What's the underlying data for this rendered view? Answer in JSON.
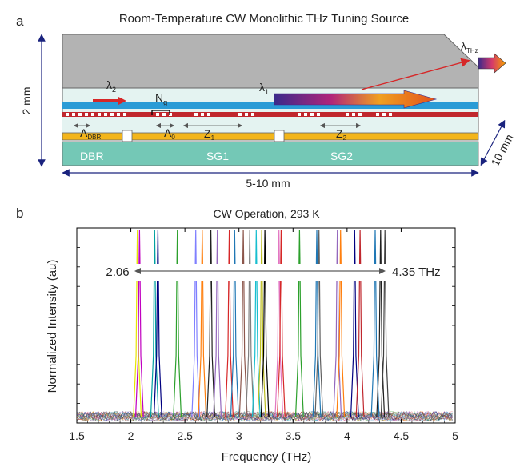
{
  "panel_a": {
    "label": "a",
    "title": "Room-Temperature CW Monolithic THz Tuning Source",
    "height_label": "2 mm",
    "length_label": "5-10 mm",
    "width_label": "10 mm",
    "lambda_thz": "λ",
    "lambda_thz_sub": "THz",
    "lambda2": "λ",
    "lambda2_sub": "2",
    "lambda1": "λ",
    "lambda1_sub": "1",
    "ng": "N",
    "ng_sub": "g",
    "lambda_dbr": "Λ",
    "lambda_dbr_sub": "DBR",
    "lambda0": "Λ",
    "lambda0_sub": "0",
    "z1": "Z",
    "z1_sub": "1",
    "z2": "Z",
    "z2_sub": "2",
    "section_dbr": "DBR",
    "section_sg1": "SG1",
    "section_sg2": "SG2",
    "colors": {
      "top_block": "#b3b3b3",
      "cladding": "#e4f3f1",
      "waveguide": "#2a9bd6",
      "grating": "#c0272d",
      "electrode": "#f3b51b",
      "substrate": "#74c8b6",
      "axis_arrow": "#1a237e"
    }
  },
  "panel_b": {
    "label": "b",
    "tuning_low": "2.06",
    "tuning_high": "4.35 THz"
  },
  "chart_data": {
    "type": "line",
    "title": "CW Operation, 293 K",
    "xlabel": "Frequency (THz)",
    "ylabel": "Normalized Intensity (au)",
    "xlim": [
      1.5,
      5
    ],
    "ylim": [
      0,
      1
    ],
    "x_ticks": [
      "1.5",
      "2",
      "2.5",
      "3",
      "3.5",
      "4",
      "4.5",
      "5"
    ],
    "grid": false,
    "series": [
      {
        "peak": 2.06,
        "color": "#e6e600"
      },
      {
        "peak": 2.08,
        "color": "#c000c0"
      },
      {
        "peak": 2.22,
        "color": "#00a0a0"
      },
      {
        "peak": 2.25,
        "color": "#000080"
      },
      {
        "peak": 2.43,
        "color": "#2ca02c"
      },
      {
        "peak": 2.6,
        "color": "#7f7fff"
      },
      {
        "peak": 2.66,
        "color": "#ff7f0e"
      },
      {
        "peak": 2.74,
        "color": "#202020"
      },
      {
        "peak": 2.8,
        "color": "#9467bd"
      },
      {
        "peak": 2.91,
        "color": "#d62728"
      },
      {
        "peak": 2.96,
        "color": "#1f77b4"
      },
      {
        "peak": 3.04,
        "color": "#8c564b"
      },
      {
        "peak": 3.1,
        "color": "#7f7f7f"
      },
      {
        "peak": 3.16,
        "color": "#17becf"
      },
      {
        "peak": 3.21,
        "color": "#bcbd22"
      },
      {
        "peak": 3.24,
        "color": "#000000"
      },
      {
        "peak": 3.37,
        "color": "#e377c2"
      },
      {
        "peak": 3.39,
        "color": "#d62728"
      },
      {
        "peak": 3.56,
        "color": "#2ca02c"
      },
      {
        "peak": 3.72,
        "color": "#1f77b4"
      },
      {
        "peak": 3.74,
        "color": "#606060"
      },
      {
        "peak": 3.91,
        "color": "#9467bd"
      },
      {
        "peak": 3.94,
        "color": "#ff7f0e"
      },
      {
        "peak": 4.07,
        "color": "#000080"
      },
      {
        "peak": 4.12,
        "color": "#c0272d"
      },
      {
        "peak": 4.26,
        "color": "#1f77b4"
      },
      {
        "peak": 4.31,
        "color": "#202020"
      },
      {
        "peak": 4.35,
        "color": "#404040"
      }
    ]
  }
}
